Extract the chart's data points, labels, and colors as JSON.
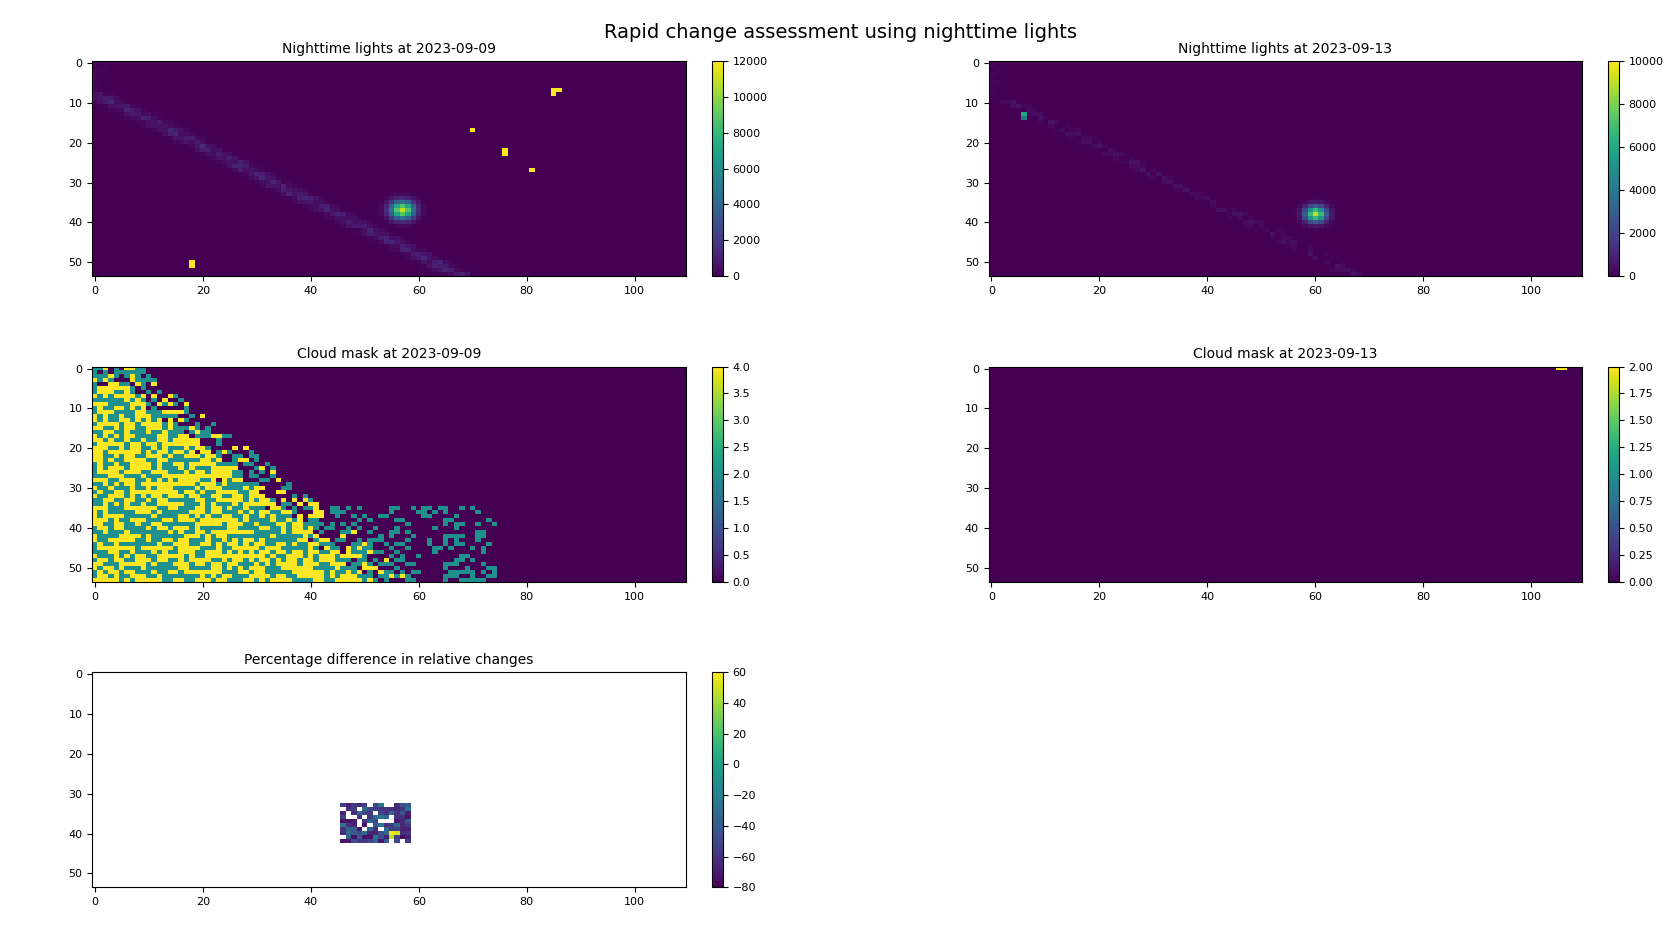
{
  "title": "Rapid change assessment using nighttime lights",
  "title1": "Nighttime lights at 2023-09-09",
  "title2": "Nighttime lights at 2023-09-13",
  "title3": "Cloud mask at 2023-09-09",
  "title4": "Cloud mask at 2023-09-13",
  "title5": "Percentage difference in relative changes",
  "grid_rows": 54,
  "grid_cols": 110,
  "cmap_lights": "viridis",
  "cmap_cloud": "viridis",
  "cmap_diff": "viridis",
  "vmin1": 0,
  "vmax1": 12000,
  "vmin2": 0,
  "vmax2": 10000,
  "vmin3": 0,
  "vmax3": 4.0,
  "vmin4": 0,
  "vmax4": 2.0,
  "vmin5": -80,
  "vmax5": 60,
  "bg_color": "#ffffff",
  "cb1_ticks": [
    0,
    2000,
    4000,
    6000,
    8000,
    10000,
    12000
  ],
  "cb2_ticks": [
    0,
    2000,
    4000,
    6000,
    8000,
    10000
  ],
  "cb3_ticks": [
    0.0,
    0.5,
    1.0,
    1.5,
    2.0,
    2.5,
    3.0,
    3.5,
    4.0
  ],
  "cb4_ticks": [
    0.0,
    0.25,
    0.5,
    0.75,
    1.0,
    1.25,
    1.5,
    1.75,
    2.0
  ],
  "cb5_ticks": [
    -80,
    -60,
    -40,
    -20,
    0,
    20,
    40,
    60
  ],
  "xticks": [
    0,
    20,
    40,
    60,
    80,
    100
  ],
  "yticks": [
    0,
    10,
    20,
    30,
    40,
    50
  ],
  "title_fontsize": 14,
  "subplot_title_fontsize": 10,
  "tick_fontsize": 8
}
